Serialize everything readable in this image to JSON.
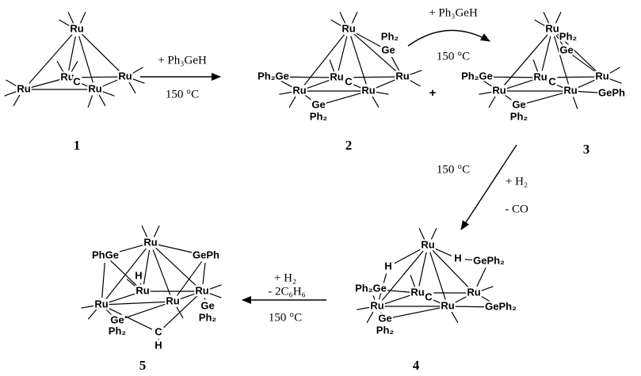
{
  "compounds": [
    {
      "number": "1",
      "atoms": [
        "Ru",
        "Ru",
        "Ru",
        "C",
        "Ru",
        "Ru"
      ]
    },
    {
      "number": "2",
      "atoms": [
        "Ru",
        "Ph₂Ge",
        "Ru",
        "C",
        "Ru",
        "Ru",
        "Ru",
        "Ph₂",
        "Ge",
        "Ge",
        "Ph₂"
      ]
    },
    {
      "number": "3",
      "atoms": [
        "Ru",
        "Ph₂Ge",
        "Ru",
        "C",
        "Ru",
        "Ru",
        "Ru",
        "Ph₂",
        "Ge",
        "Ge",
        "Ph₂",
        "GePh"
      ]
    },
    {
      "number": "4",
      "atoms": [
        "Ru",
        "H",
        "H",
        "GePh₂",
        "Ph₂Ge",
        "Ru",
        "C",
        "Ru",
        "Ru",
        "Ru",
        "GePh₂",
        "Ge",
        "Ph₂"
      ]
    },
    {
      "number": "5",
      "atoms": [
        "Ru",
        "PhGe",
        "GePh",
        "H",
        "Ru",
        "Ru",
        "Ru",
        "Ru",
        "Ge",
        "Ph₂",
        "Ge",
        "Ph₂",
        "C",
        "H"
      ]
    }
  ],
  "plus": "+",
  "arrows": [
    {
      "reagent": "+ Ph₃GeH",
      "condition": "150 °C"
    },
    {
      "reagent": "+ Ph₃GeH",
      "condition": "150 °C"
    },
    {
      "condition": "150 °C",
      "reagent": "+ H₂",
      "byproduct": "- CO"
    },
    {
      "reagent": "+ H₂",
      "byproduct": "- 2C₆H₆",
      "condition": "150 °C"
    }
  ]
}
